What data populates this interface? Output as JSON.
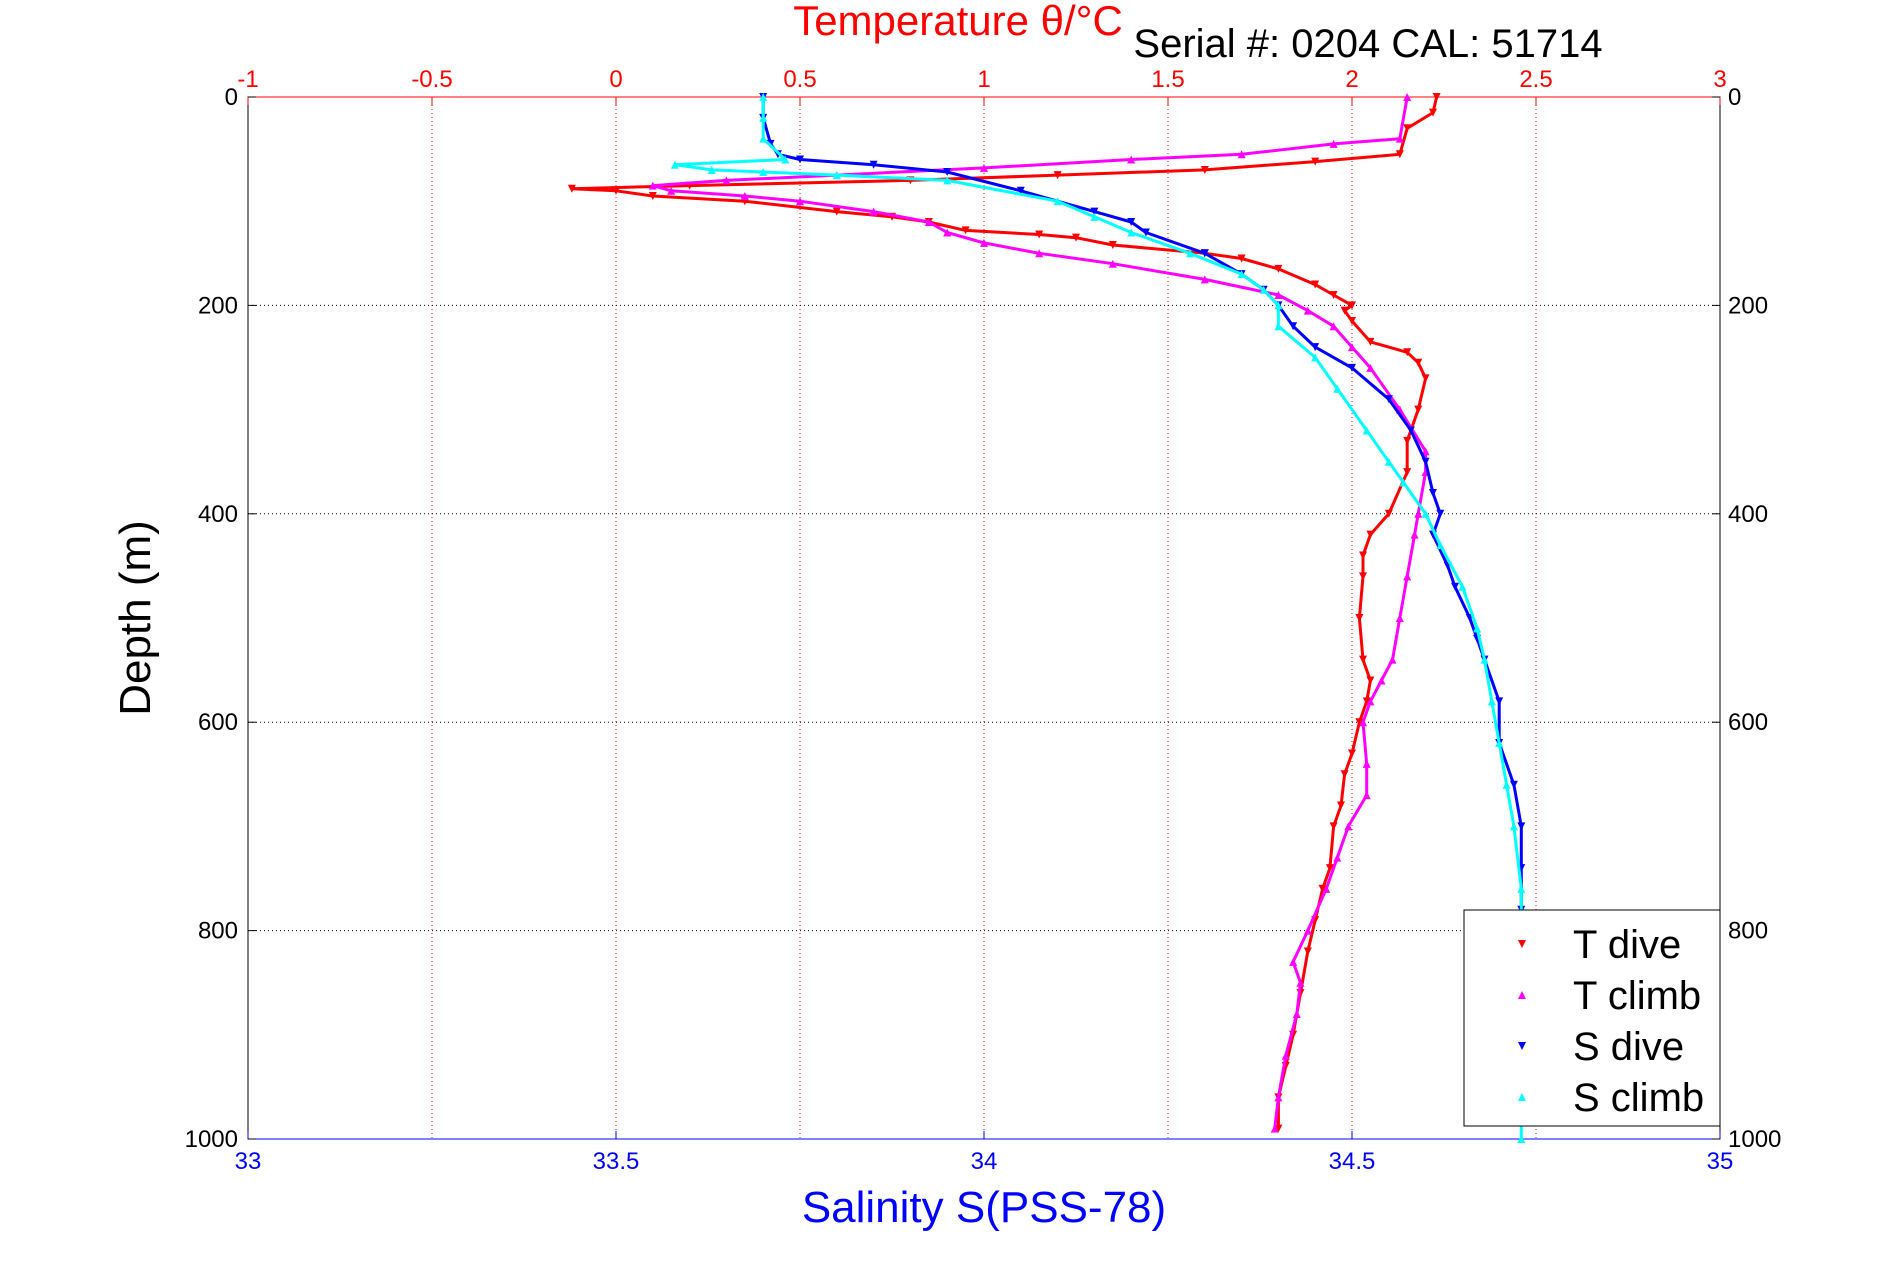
{
  "header": {
    "top_title": "Temperature θ/°C",
    "serial_text": "Serial #: 0204   CAL: 51714"
  },
  "colors": {
    "temperature_axis": "#ff0000",
    "salinity_axis": "#0000ff",
    "t_dive": "#ff0000",
    "t_climb": "#ff00ff",
    "s_dive": "#0000ff",
    "s_climb": "#00ffff",
    "grid": "#000000"
  },
  "chart_data": {
    "type": "scatter",
    "ylabel": "Depth (m)",
    "y_axis": {
      "range": [
        0,
        1000
      ],
      "inverted": true,
      "ticks": [
        0,
        200,
        400,
        600,
        800,
        1000
      ]
    },
    "x_axis_bottom": {
      "label": "Salinity S(PSS-78)",
      "range": [
        33,
        35
      ],
      "ticks": [
        "33",
        "33.5",
        "34",
        "34.5",
        "35"
      ]
    },
    "x_axis_top": {
      "label": "Temperature θ/°C",
      "range": [
        -1,
        3
      ],
      "ticks": [
        "-1",
        "-0.5",
        "0",
        "0.5",
        "1",
        "1.5",
        "2",
        "2.5",
        "3"
      ]
    },
    "grid": true,
    "legend": {
      "position": "bottom-right",
      "entries": [
        "T dive",
        "T climb",
        "S dive",
        "S climb"
      ]
    },
    "series": [
      {
        "name": "T dive",
        "axis": "top",
        "marker": "triangle-down",
        "points": [
          [
            2.23,
            0
          ],
          [
            2.22,
            15
          ],
          [
            2.15,
            30
          ],
          [
            2.13,
            55
          ],
          [
            1.9,
            62
          ],
          [
            1.6,
            70
          ],
          [
            1.2,
            75
          ],
          [
            0.8,
            80
          ],
          [
            0.2,
            85
          ],
          [
            -0.12,
            88
          ],
          [
            0.0,
            90
          ],
          [
            0.1,
            95
          ],
          [
            0.35,
            100
          ],
          [
            0.6,
            110
          ],
          [
            0.75,
            115
          ],
          [
            0.85,
            120
          ],
          [
            0.95,
            128
          ],
          [
            1.15,
            132
          ],
          [
            1.25,
            135
          ],
          [
            1.35,
            142
          ],
          [
            1.6,
            150
          ],
          [
            1.7,
            155
          ],
          [
            1.8,
            165
          ],
          [
            1.9,
            180
          ],
          [
            1.95,
            190
          ],
          [
            2.0,
            200
          ],
          [
            1.98,
            205
          ],
          [
            2.0,
            215
          ],
          [
            2.05,
            235
          ],
          [
            2.15,
            245
          ],
          [
            2.18,
            255
          ],
          [
            2.2,
            270
          ],
          [
            2.18,
            300
          ],
          [
            2.15,
            330
          ],
          [
            2.15,
            360
          ],
          [
            2.1,
            400
          ],
          [
            2.05,
            420
          ],
          [
            2.03,
            440
          ],
          [
            2.03,
            460
          ],
          [
            2.02,
            500
          ],
          [
            2.03,
            540
          ],
          [
            2.05,
            560
          ],
          [
            2.04,
            580
          ],
          [
            2.02,
            600
          ],
          [
            2.0,
            630
          ],
          [
            1.98,
            650
          ],
          [
            1.97,
            680
          ],
          [
            1.95,
            700
          ],
          [
            1.94,
            740
          ],
          [
            1.92,
            760
          ],
          [
            1.9,
            790
          ],
          [
            1.88,
            820
          ],
          [
            1.86,
            860
          ],
          [
            1.84,
            900
          ],
          [
            1.82,
            930
          ],
          [
            1.8,
            960
          ],
          [
            1.8,
            990
          ]
        ]
      },
      {
        "name": "T climb",
        "axis": "top",
        "marker": "triangle-up",
        "points": [
          [
            2.15,
            0
          ],
          [
            2.13,
            40
          ],
          [
            1.95,
            45
          ],
          [
            1.7,
            55
          ],
          [
            1.4,
            60
          ],
          [
            1.0,
            68
          ],
          [
            0.6,
            75
          ],
          [
            0.3,
            80
          ],
          [
            0.1,
            85
          ],
          [
            0.15,
            90
          ],
          [
            0.35,
            95
          ],
          [
            0.5,
            100
          ],
          [
            0.7,
            110
          ],
          [
            0.85,
            120
          ],
          [
            0.9,
            130
          ],
          [
            1.0,
            140
          ],
          [
            1.15,
            150
          ],
          [
            1.35,
            160
          ],
          [
            1.6,
            175
          ],
          [
            1.8,
            190
          ],
          [
            1.88,
            205
          ],
          [
            1.95,
            220
          ],
          [
            2.0,
            240
          ],
          [
            2.05,
            260
          ],
          [
            2.13,
            300
          ],
          [
            2.2,
            340
          ],
          [
            2.2,
            360
          ],
          [
            2.18,
            400
          ],
          [
            2.17,
            420
          ],
          [
            2.15,
            460
          ],
          [
            2.13,
            500
          ],
          [
            2.11,
            540
          ],
          [
            2.08,
            560
          ],
          [
            2.05,
            580
          ],
          [
            2.03,
            600
          ],
          [
            2.04,
            640
          ],
          [
            2.04,
            670
          ],
          [
            1.99,
            700
          ],
          [
            1.96,
            730
          ],
          [
            1.93,
            760
          ],
          [
            1.88,
            800
          ],
          [
            1.84,
            830
          ],
          [
            1.86,
            850
          ],
          [
            1.85,
            880
          ],
          [
            1.82,
            920
          ],
          [
            1.8,
            960
          ],
          [
            1.79,
            990
          ]
        ]
      },
      {
        "name": "S dive",
        "axis": "bottom",
        "marker": "triangle-down",
        "points": [
          [
            33.7,
            0
          ],
          [
            33.7,
            20
          ],
          [
            33.71,
            45
          ],
          [
            33.72,
            55
          ],
          [
            33.75,
            60
          ],
          [
            33.85,
            65
          ],
          [
            33.95,
            72
          ],
          [
            34.05,
            90
          ],
          [
            34.15,
            110
          ],
          [
            34.2,
            120
          ],
          [
            34.22,
            130
          ],
          [
            34.3,
            150
          ],
          [
            34.35,
            170
          ],
          [
            34.38,
            185
          ],
          [
            34.4,
            200
          ],
          [
            34.42,
            220
          ],
          [
            34.45,
            240
          ],
          [
            34.5,
            260
          ],
          [
            34.55,
            290
          ],
          [
            34.58,
            320
          ],
          [
            34.6,
            350
          ],
          [
            34.61,
            380
          ],
          [
            34.62,
            400
          ],
          [
            34.61,
            420
          ],
          [
            34.63,
            450
          ],
          [
            34.64,
            470
          ],
          [
            34.66,
            500
          ],
          [
            34.67,
            520
          ],
          [
            34.68,
            540
          ],
          [
            34.7,
            580
          ],
          [
            34.7,
            620
          ],
          [
            34.72,
            660
          ],
          [
            34.73,
            700
          ],
          [
            34.73,
            740
          ],
          [
            34.73,
            780
          ],
          [
            34.73,
            800
          ]
        ]
      },
      {
        "name": "S climb",
        "axis": "bottom",
        "marker": "triangle-up",
        "points": [
          [
            33.7,
            0
          ],
          [
            33.7,
            20
          ],
          [
            33.7,
            40
          ],
          [
            33.73,
            60
          ],
          [
            33.58,
            65
          ],
          [
            33.63,
            70
          ],
          [
            33.7,
            72
          ],
          [
            33.8,
            75
          ],
          [
            33.95,
            80
          ],
          [
            34.1,
            100
          ],
          [
            34.15,
            115
          ],
          [
            34.2,
            130
          ],
          [
            34.28,
            150
          ],
          [
            34.35,
            170
          ],
          [
            34.38,
            185
          ],
          [
            34.4,
            200
          ],
          [
            34.4,
            220
          ],
          [
            34.45,
            250
          ],
          [
            34.48,
            280
          ],
          [
            34.52,
            320
          ],
          [
            34.55,
            350
          ],
          [
            34.57,
            370
          ],
          [
            34.6,
            400
          ],
          [
            34.62,
            430
          ],
          [
            34.65,
            470
          ],
          [
            34.67,
            510
          ],
          [
            34.68,
            540
          ],
          [
            34.69,
            580
          ],
          [
            34.7,
            620
          ],
          [
            34.71,
            660
          ],
          [
            34.72,
            700
          ],
          [
            34.73,
            760
          ],
          [
            34.73,
            800
          ],
          [
            34.73,
            850
          ],
          [
            34.73,
            900
          ],
          [
            34.73,
            960
          ],
          [
            34.73,
            1000
          ]
        ]
      }
    ]
  }
}
